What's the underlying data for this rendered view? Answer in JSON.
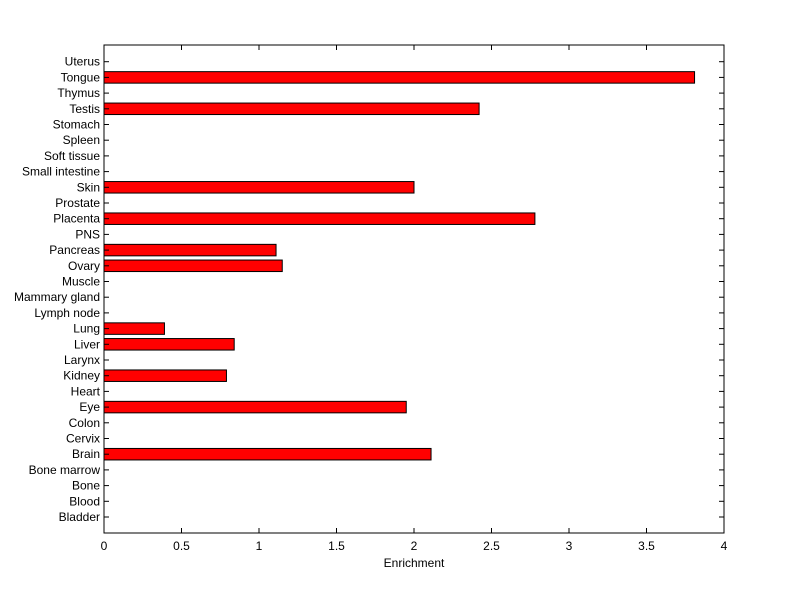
{
  "chart_data": {
    "type": "bar",
    "orientation": "horizontal",
    "categories": [
      "Bladder",
      "Blood",
      "Bone",
      "Bone marrow",
      "Brain",
      "Cervix",
      "Colon",
      "Eye",
      "Heart",
      "Kidney",
      "Larynx",
      "Liver",
      "Lung",
      "Lymph node",
      "Mammary gland",
      "Muscle",
      "Ovary",
      "Pancreas",
      "PNS",
      "Placenta",
      "Prostate",
      "Skin",
      "Small intestine",
      "Soft tissue",
      "Spleen",
      "Stomach",
      "Testis",
      "Thymus",
      "Tongue",
      "Uterus"
    ],
    "values": [
      0,
      0,
      0,
      0,
      2.11,
      0,
      0,
      1.95,
      0,
      0.79,
      0,
      0.84,
      0.39,
      0,
      0,
      0,
      1.15,
      1.11,
      0,
      2.78,
      0,
      2.0,
      0,
      0,
      0,
      0,
      2.42,
      0,
      3.81,
      0
    ],
    "title": "",
    "xlabel": "Enrichment",
    "ylabel": "",
    "xlim": [
      0,
      4
    ],
    "xticks": [
      "0",
      "0.5",
      "1",
      "1.5",
      "2",
      "2.5",
      "3",
      "3.5",
      "4"
    ],
    "bar_color": "#ff0000",
    "grid": false
  }
}
